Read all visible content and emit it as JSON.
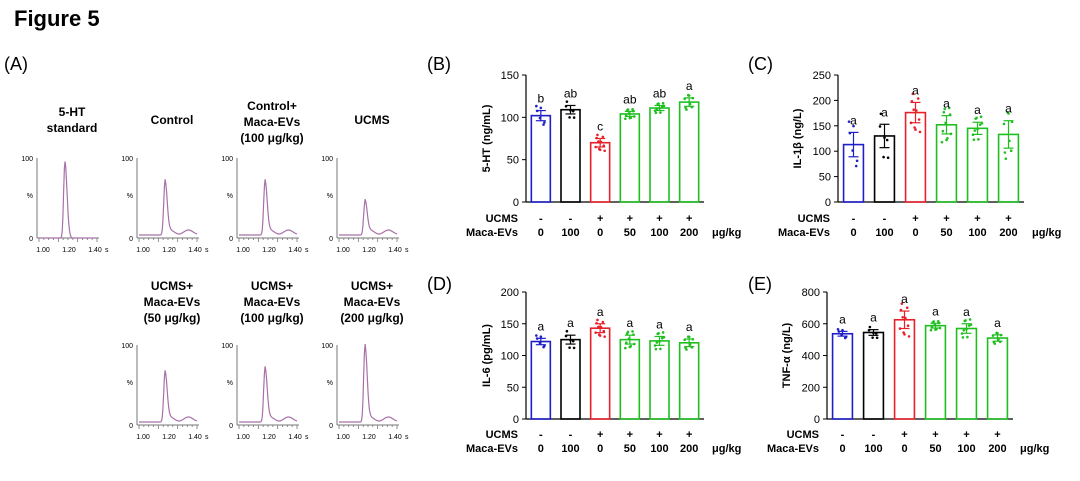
{
  "figure": {
    "title": "Figure 5"
  },
  "colors": {
    "blue": "#1f1fc8",
    "black": "#000000",
    "red": "#e8202a",
    "green": "#1fbf1f",
    "trace": "#a870a8"
  },
  "chromatograms": {
    "label": "(A)",
    "y_top": "100",
    "y_mid": "%",
    "y_bottom": "0",
    "x_ticks": [
      "1.00",
      "1.20",
      "1.40"
    ],
    "x_unit": "s",
    "panels": [
      {
        "title": [
          "5-HT",
          "standard"
        ],
        "peak_height": 0.96
      },
      {
        "title": [
          "Control"
        ],
        "peak_height": 0.66
      },
      {
        "title": [
          "Control+",
          "Maca-EVs",
          "(100 μg/kg)"
        ],
        "peak_height": 0.66
      },
      {
        "title": [
          "UCMS"
        ],
        "peak_height": 0.41
      },
      {
        "title": [
          "UCMS+",
          "Maca-EVs",
          "(50 μg/kg)"
        ],
        "peak_height": 0.61
      },
      {
        "title": [
          "UCMS+",
          "Maca-EVs",
          "(100 μg/kg)"
        ],
        "peak_height": 0.66
      },
      {
        "title": [
          "UCMS+",
          "Maca-EVs",
          "(200 μg/kg)"
        ],
        "peak_height": 0.94
      }
    ]
  },
  "treatment_rows": {
    "ucms_label": "UCMS",
    "evs_label": "Maca-EVs",
    "ucms": [
      "-",
      "-",
      "+",
      "+",
      "+",
      "+"
    ],
    "evs": [
      "0",
      "100",
      "0",
      "50",
      "100",
      "200"
    ],
    "unit": "μg/kg"
  },
  "chart_data": [
    {
      "type": "bar",
      "panel": "(B)",
      "ylabel": "5-HT (ng/mL)",
      "ylim": [
        0,
        150
      ],
      "yticks": [
        "0",
        "50",
        "100",
        "150"
      ],
      "values": [
        102,
        109,
        70,
        104,
        111,
        118
      ],
      "errors": [
        6,
        5,
        5,
        3,
        3,
        5
      ],
      "letters": [
        "b",
        "ab",
        "c",
        "ab",
        "ab",
        "a"
      ]
    },
    {
      "type": "bar",
      "panel": "(C)",
      "ylabel": "IL-1β (ng/L)",
      "ylim": [
        0,
        250
      ],
      "yticks": [
        "0",
        "50",
        "100",
        "150",
        "200",
        "250"
      ],
      "values": [
        113,
        130,
        176,
        152,
        145,
        133
      ],
      "errors": [
        24,
        23,
        20,
        18,
        12,
        27
      ],
      "letters": [
        "a",
        "a",
        "a",
        "a",
        "a",
        "a"
      ]
    },
    {
      "type": "bar",
      "panel": "(D)",
      "ylabel": "IL-6 (pg/mL)",
      "ylim": [
        0,
        200
      ],
      "yticks": [
        "0",
        "50",
        "100",
        "150",
        "200"
      ],
      "values": [
        122,
        125,
        143,
        125,
        123,
        120
      ],
      "errors": [
        5,
        7,
        7,
        7,
        7,
        6
      ],
      "letters": [
        "a",
        "a",
        "a",
        "a",
        "a",
        "a"
      ]
    },
    {
      "type": "bar",
      "panel": "(E)",
      "ylabel": "TNF-α (ng/L)",
      "ylim": [
        0,
        800
      ],
      "yticks": [
        "0",
        "200",
        "400",
        "600",
        "800"
      ],
      "values": [
        537,
        545,
        625,
        588,
        570,
        510
      ],
      "errors": [
        15,
        18,
        55,
        15,
        30,
        20
      ],
      "letters": [
        "a",
        "a",
        "a",
        "a",
        "a",
        "a"
      ]
    }
  ]
}
